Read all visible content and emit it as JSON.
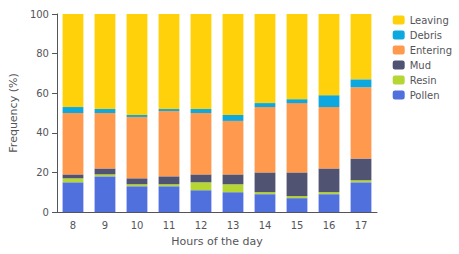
{
  "chart_data": {
    "type": "bar",
    "stacked": true,
    "xlabel": "Hours of the day",
    "ylabel": "Frequency (%)",
    "categories": [
      "8",
      "9",
      "10",
      "11",
      "12",
      "13",
      "14",
      "15",
      "16",
      "17"
    ],
    "series": [
      {
        "name": "Pollen",
        "values": [
          15,
          18,
          13,
          13,
          11,
          10,
          9,
          7,
          9,
          15
        ]
      },
      {
        "name": "Resin",
        "values": [
          2,
          1,
          1,
          1,
          4,
          4,
          1,
          1,
          1,
          1
        ]
      },
      {
        "name": "Mud",
        "values": [
          2,
          3,
          3,
          4,
          4,
          5,
          10,
          12,
          12,
          11
        ]
      },
      {
        "name": "Entering",
        "values": [
          31,
          28,
          31,
          33,
          31,
          27,
          33,
          35,
          31,
          36
        ]
      },
      {
        "name": "Debris",
        "values": [
          3,
          2,
          1,
          1,
          2,
          3,
          2,
          2,
          6,
          4
        ]
      },
      {
        "name": "Leaving",
        "values": [
          47,
          48,
          51,
          48,
          48,
          51,
          45,
          43,
          41,
          33
        ]
      }
    ],
    "ylim": [
      0,
      100
    ],
    "yticks": [
      0,
      20,
      40,
      60,
      80,
      100
    ],
    "grid": false,
    "legend": "upper right"
  }
}
